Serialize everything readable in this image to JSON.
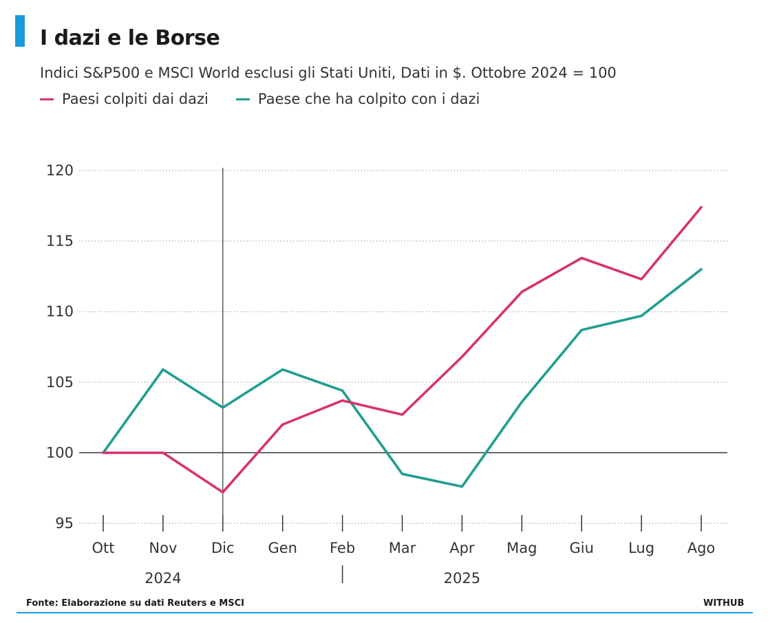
{
  "header": {
    "title": "I dazi e le Borse",
    "subtitle": "Indici S&P500 e MSCI World esclusi gli Stati Uniti, Dati in $. Ottobre 2024 = 100"
  },
  "footer": {
    "source": "Fonte: Elaborazione su dati Reuters e MSCI",
    "brand": "WITHUB"
  },
  "colors": {
    "accent": "#1a9ad6",
    "series_hit": "#d6336c",
    "series_hitter": "#1f9e8e",
    "grid": "#999999",
    "axis": "#333333"
  },
  "chart_data": {
    "type": "line",
    "title": "I dazi e le Borse",
    "subtitle": "Indici S&P500 e MSCI World esclusi gli Stati Uniti, Dati in $. Ottobre 2024 = 100",
    "categories": [
      "Ott",
      "Nov",
      "Dic",
      "Gen",
      "Feb",
      "Mar",
      "Apr",
      "Mag",
      "Giu",
      "Lug",
      "Ago"
    ],
    "year_labels": [
      {
        "label": "2024",
        "under": "Nov"
      },
      {
        "label": "2025",
        "under": "Apr"
      }
    ],
    "series": [
      {
        "name": "Paesi colpiti dai dazi",
        "color": "#d6336c",
        "values": [
          100,
          100,
          97.2,
          102,
          103.7,
          102.7,
          106.8,
          111.4,
          113.8,
          112.3,
          117.4
        ]
      },
      {
        "name": "Paese che ha colpito con i dazi",
        "color": "#1f9e8e",
        "values": [
          100,
          105.9,
          103.2,
          105.9,
          104.4,
          98.5,
          97.6,
          103.6,
          108.7,
          109.7,
          113
        ]
      }
    ],
    "yticks": [
      95,
      100,
      105,
      110,
      115,
      120
    ],
    "ylim": [
      95,
      120
    ],
    "grid": "dotted horizontal",
    "legend_position": "top-left",
    "xlabel": "",
    "ylabel": ""
  }
}
